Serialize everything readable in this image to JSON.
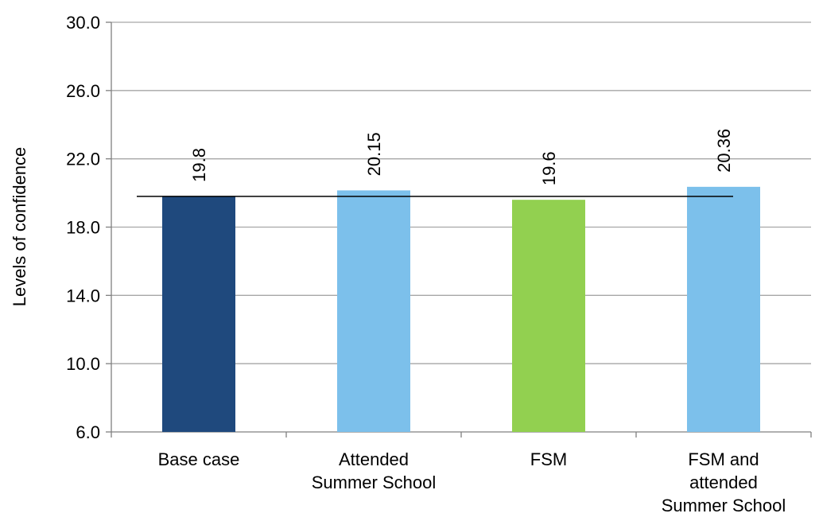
{
  "chart_data": {
    "type": "bar",
    "title": "",
    "xlabel": "",
    "ylabel": "Levels of confidence",
    "ylim": [
      6.0,
      30.0
    ],
    "yticks": [
      6.0,
      10.0,
      14.0,
      18.0,
      22.0,
      26.0,
      30.0
    ],
    "ytick_labels": [
      "6.0",
      "10.0",
      "14.0",
      "18.0",
      "22.0",
      "26.0",
      "30.0"
    ],
    "grid": "horizontal",
    "legend": "none",
    "categories": [
      [
        "Base case"
      ],
      [
        "Attended",
        "Summer School"
      ],
      [
        "FSM"
      ],
      [
        "FSM and",
        "attended",
        "Summer School"
      ]
    ],
    "values": [
      19.8,
      20.15,
      19.6,
      20.36
    ],
    "value_labels": [
      "19.8",
      "20.15",
      "19.6",
      "20.36"
    ],
    "bar_colors": [
      "#1F497D",
      "#7CC0EB",
      "#92D050",
      "#7CC0EB"
    ],
    "reference_line": {
      "value": 19.8
    },
    "colors": {
      "grid": "#A6A6A6",
      "axis": "#808080",
      "reference_line": "#000000"
    }
  }
}
